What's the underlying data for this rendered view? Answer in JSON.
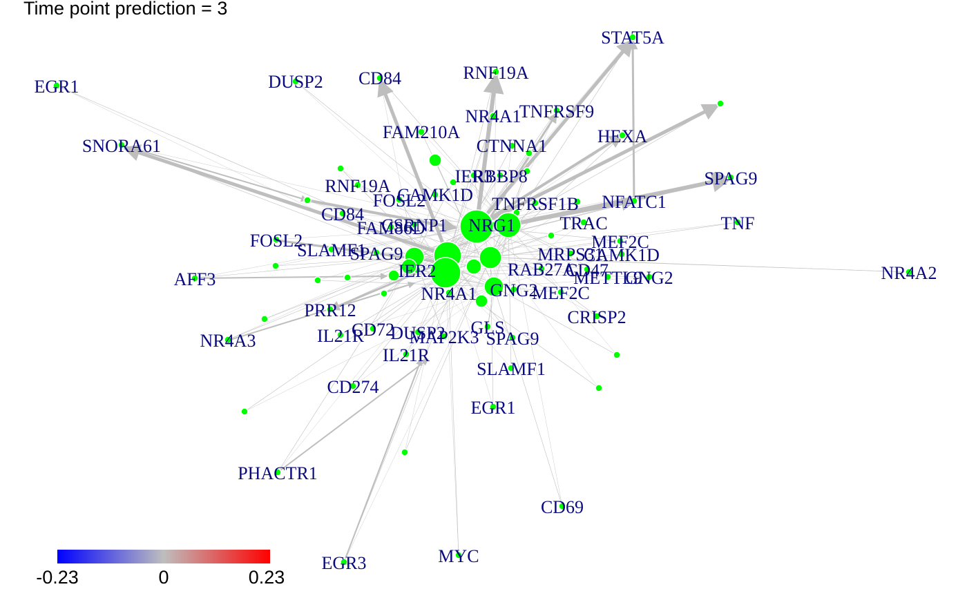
{
  "title": "Time point prediction = 3",
  "colors": {
    "node": "#00ff00",
    "edge": "#bebebe",
    "label": "#0a0a80",
    "scale_low": "#0000ff",
    "scale_mid": "#bebebe",
    "scale_high": "#ff0000"
  },
  "color_scale": {
    "min_label": "-0.23",
    "mid_label": "0",
    "max_label": "0.23"
  },
  "labels": [
    "EGR1",
    "DUSP2",
    "CD84",
    "RNF19A",
    "STAT5A",
    "SNORA61",
    "FAM210A",
    "NR4A1",
    "TNFRSF9",
    "NR4A3",
    "CTNNA1",
    "HEXA",
    "SPAG9",
    "IER3",
    "RBBP8",
    "RNF19A",
    "CAMK1D",
    "FOSL2",
    "TNFRSF1B",
    "NFATC1",
    "CD84",
    "FAM86D",
    "CSRNP1",
    "NRG1",
    "TRAC",
    "TNF",
    "FOSL2",
    "SLAMF1",
    "SPAG9",
    "MEF2C",
    "MRPS31",
    "CAMK1D",
    "NR4A2",
    "AFF3",
    "IER2",
    "RAB27A",
    "CD47",
    "METTL9",
    "GNG2",
    "NR4A1",
    "GNG2",
    "MEF2C",
    "PRR12",
    "CRISP2",
    "CD72",
    "IL21R",
    "DUSP2",
    "MAP2K3",
    "GLS",
    "SPAG9",
    "NR4A3",
    "IL21R",
    "SLAMF1",
    "CD274",
    "EGR1",
    "PHACTR1",
    "CD69",
    "MYC",
    "EGR3"
  ]
}
